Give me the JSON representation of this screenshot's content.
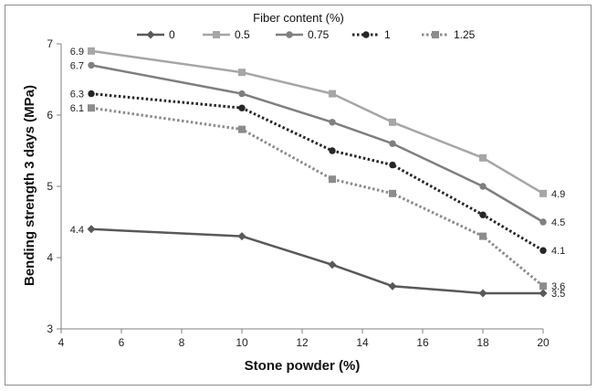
{
  "chart_data": {
    "type": "line",
    "xlabel": "Stone powder (%)",
    "ylabel": "Bending strength 3 days (MPa)",
    "legend_title": "Fiber content (%)",
    "legend_position": "top",
    "grid": false,
    "xlim": [
      4,
      20
    ],
    "ylim": [
      3,
      7
    ],
    "x_ticks": [
      4,
      6,
      8,
      10,
      12,
      14,
      16,
      18,
      20
    ],
    "y_ticks": [
      3,
      4,
      5,
      6,
      7
    ],
    "x": [
      5,
      10,
      13,
      15,
      18,
      20
    ],
    "series": [
      {
        "name": "0",
        "values": [
          4.4,
          4.3,
          3.9,
          3.6,
          3.5,
          3.5
        ],
        "color": "#595959",
        "marker": "diamond",
        "dash": "solid",
        "labels": {
          "0": "4.4",
          "5": "3.5"
        }
      },
      {
        "name": "0.5",
        "values": [
          6.9,
          6.6,
          6.3,
          5.9,
          5.4,
          4.9
        ],
        "color": "#a6a6a6",
        "marker": "square",
        "dash": "solid",
        "labels": {
          "0": "6.9",
          "5": "4.9"
        }
      },
      {
        "name": "0.75",
        "values": [
          6.7,
          6.3,
          5.9,
          5.6,
          5.0,
          4.5
        ],
        "color": "#7f7f7f",
        "marker": "circle",
        "dash": "solid",
        "labels": {
          "0": "6.7",
          "5": "4.5"
        }
      },
      {
        "name": "1",
        "values": [
          6.3,
          6.1,
          5.5,
          5.3,
          4.6,
          4.1
        ],
        "color": "#262626",
        "marker": "circle",
        "dash": "dotted",
        "labels": {
          "0": "6.3",
          "5": "4.1"
        }
      },
      {
        "name": "1.25",
        "values": [
          6.1,
          5.8,
          5.1,
          4.9,
          4.3,
          3.6
        ],
        "color": "#8c8c8c",
        "marker": "square",
        "dash": "dotted",
        "labels": {
          "0": "6.1",
          "5": "3.6"
        }
      }
    ]
  }
}
